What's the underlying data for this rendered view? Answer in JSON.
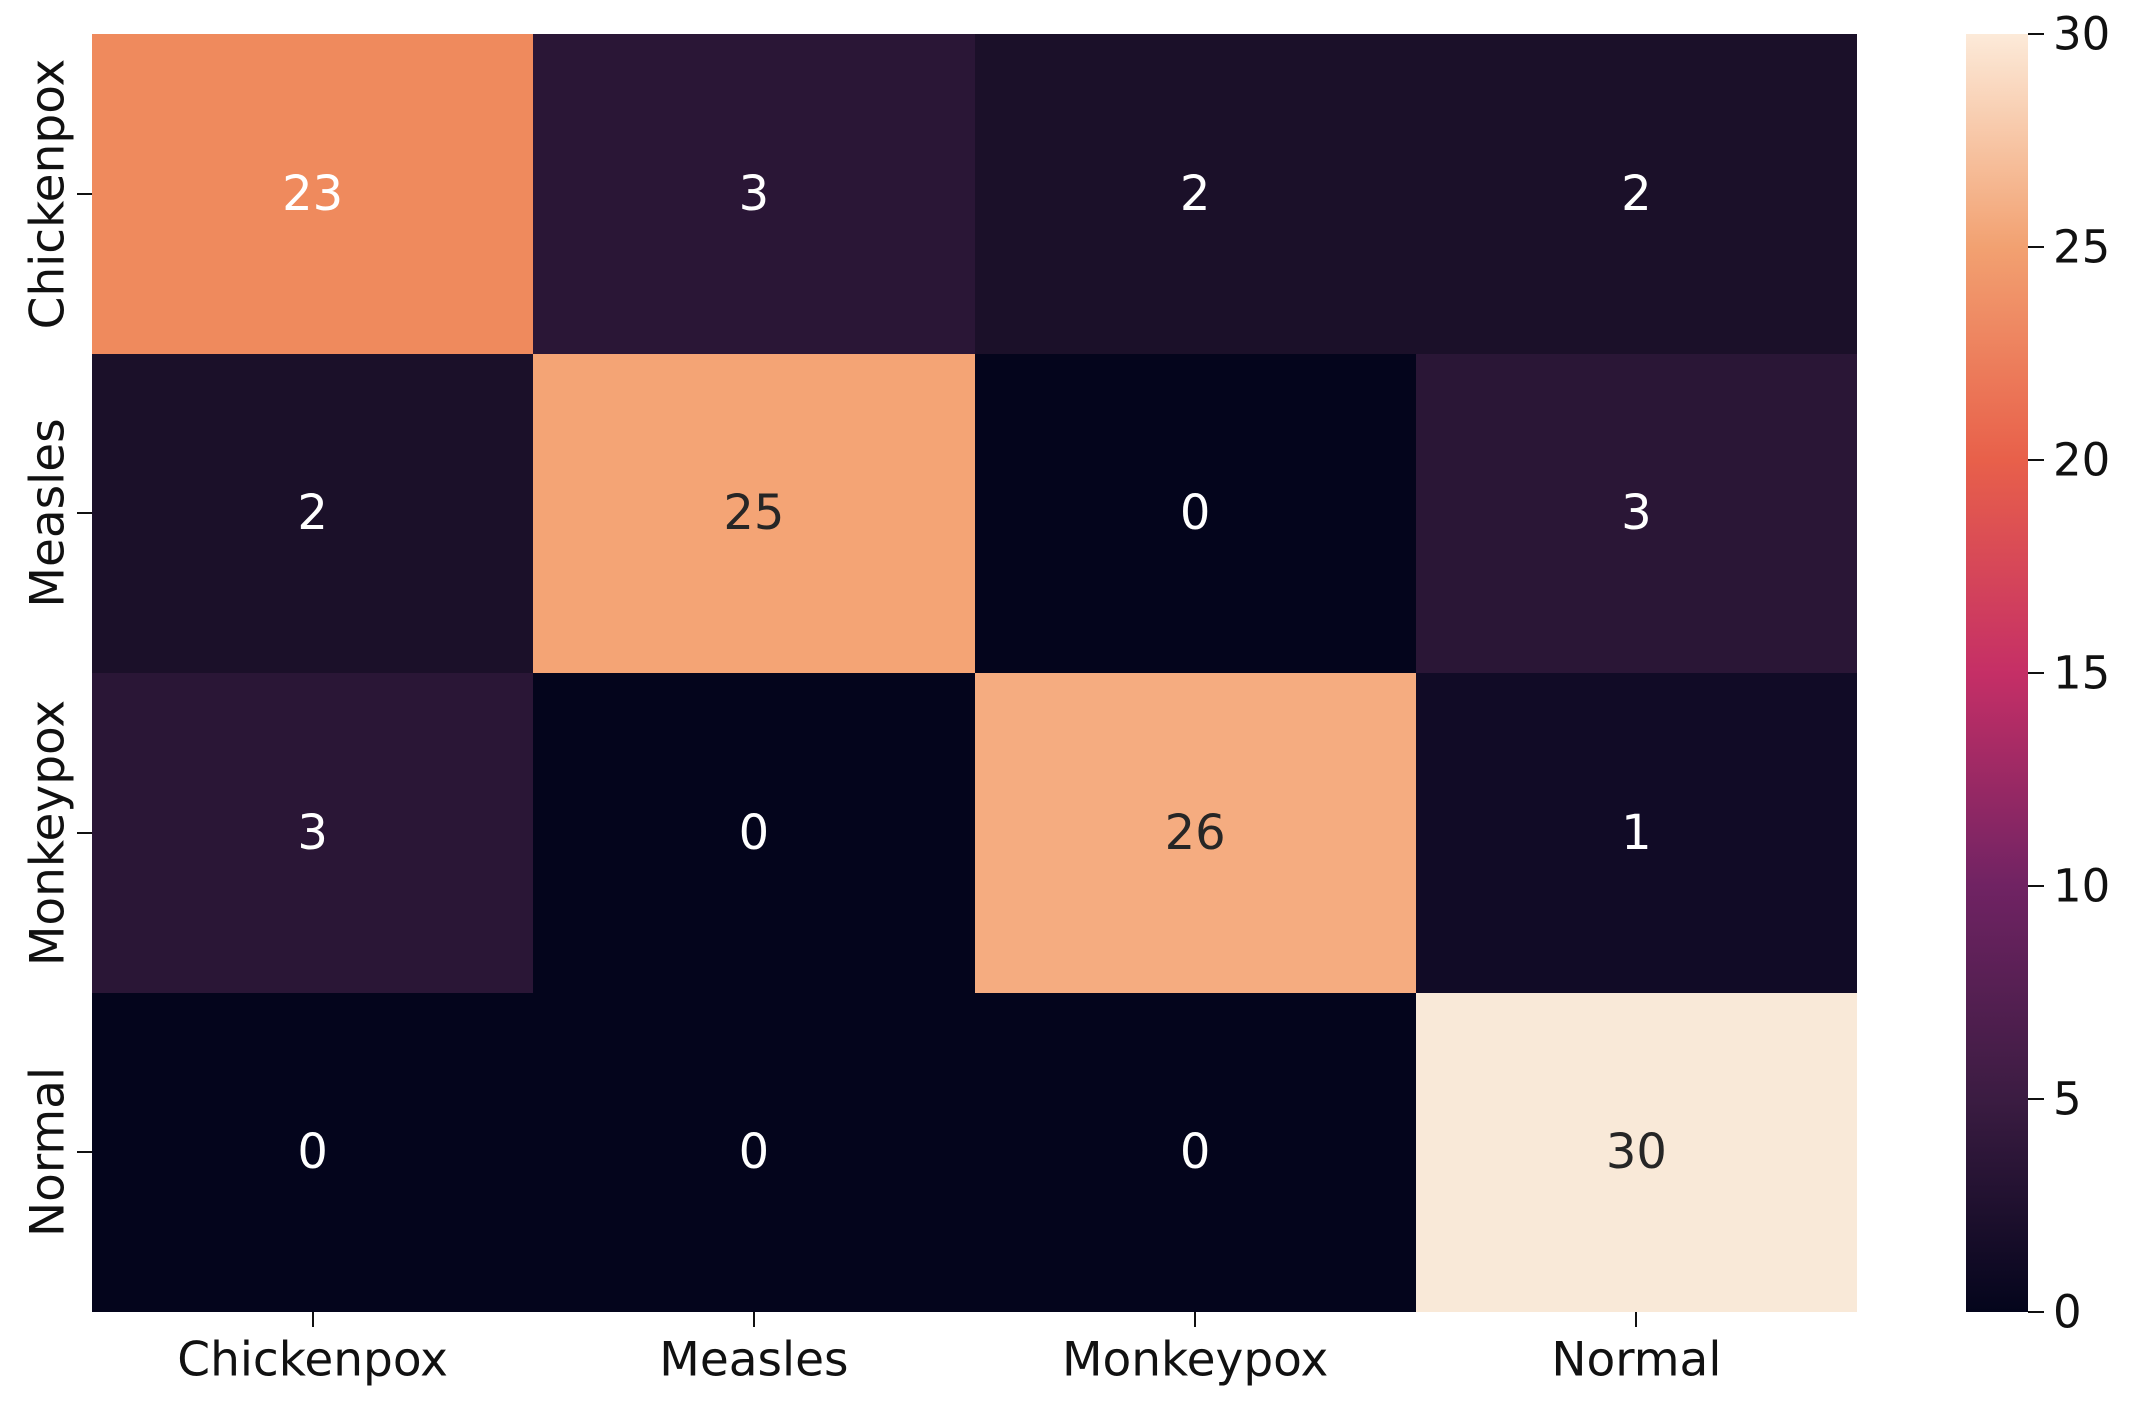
{
  "figure": {
    "background": "#ffffff",
    "text_color": "#111111"
  },
  "chart_data": {
    "type": "heatmap",
    "title": "",
    "xlabel": "",
    "ylabel": "",
    "x_categories": [
      "Chickenpox",
      "Measles",
      "Monkeypox",
      "Normal"
    ],
    "y_categories": [
      "Chickenpox",
      "Measles",
      "Monkeypox",
      "Normal"
    ],
    "matrix": [
      [
        23,
        3,
        2,
        2
      ],
      [
        2,
        25,
        0,
        3
      ],
      [
        3,
        0,
        26,
        1
      ],
      [
        0,
        0,
        0,
        30
      ]
    ],
    "vmin": 0,
    "vmax": 30,
    "colormap": "rocket",
    "grid": false,
    "annotated": true,
    "cell_bg_colors": [
      [
        "#ef8a5d",
        "#2a1636",
        "#1b1029",
        "#1b1029"
      ],
      [
        "#1b1029",
        "#f4a475",
        "#04051c",
        "#2a1636"
      ],
      [
        "#2a1636",
        "#04051c",
        "#f5ac80",
        "#110b26"
      ],
      [
        "#04051c",
        "#04051c",
        "#04051c",
        "#f9e9d8"
      ]
    ],
    "cell_text_colors": [
      [
        "#ffffff",
        "#ffffff",
        "#ffffff",
        "#ffffff"
      ],
      [
        "#ffffff",
        "#262626",
        "#ffffff",
        "#ffffff"
      ],
      [
        "#ffffff",
        "#ffffff",
        "#262626",
        "#ffffff"
      ],
      [
        "#ffffff",
        "#ffffff",
        "#ffffff",
        "#262626"
      ]
    ],
    "colorbar": {
      "position": "right",
      "tick_values": [
        0,
        5,
        10,
        15,
        20,
        25,
        30
      ],
      "gradient_stops": [
        {
          "value": 0,
          "color": "#04051c"
        },
        {
          "value": 5,
          "color": "#3b1c42"
        },
        {
          "value": 10,
          "color": "#702363"
        },
        {
          "value": 15,
          "color": "#c52f66"
        },
        {
          "value": 20,
          "color": "#e8604a"
        },
        {
          "value": 25,
          "color": "#f2a171"
        },
        {
          "value": 30,
          "color": "#fcead9"
        }
      ]
    }
  }
}
